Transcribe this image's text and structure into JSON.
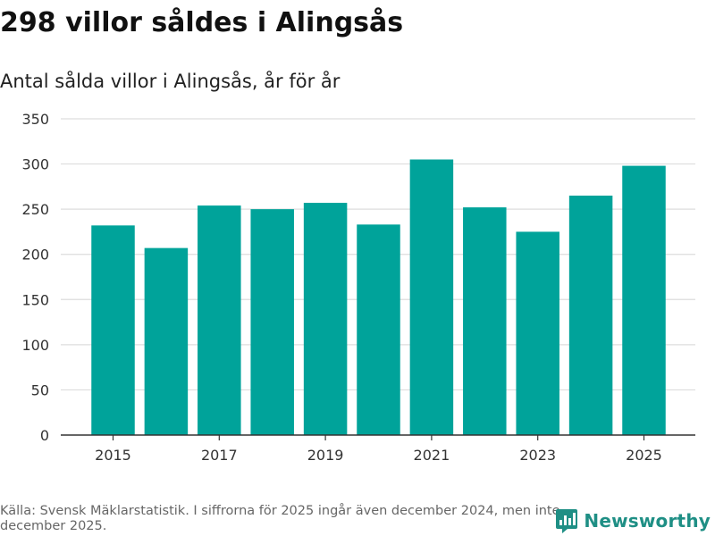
{
  "header": {
    "title": "298 villor såldes i Alingsås",
    "subtitle": "Antal sålda villor i Alingsås, år för år"
  },
  "footer": {
    "source": "Källa: Svensk Mäklarstatistik. I siffrorna för 2025 ingår även december 2024, men inte december 2025.",
    "brand": "Newsworthy",
    "brand_icon": "bar-chart-logo-icon"
  },
  "colors": {
    "bar": "#00a39a",
    "grid": "#dddddd",
    "axis": "#333333",
    "brand": "#1f8f85"
  },
  "chart_data": {
    "type": "bar",
    "title": "298 villor såldes i Alingsås",
    "subtitle": "Antal sålda villor i Alingsås, år för år",
    "categories": [
      "2015",
      "2016",
      "2017",
      "2018",
      "2019",
      "2020",
      "2021",
      "2022",
      "2023",
      "2024",
      "2025"
    ],
    "values": [
      232,
      207,
      254,
      250,
      257,
      233,
      305,
      252,
      225,
      265,
      298
    ],
    "xtick_labels": [
      "2015",
      "2017",
      "2019",
      "2021",
      "2023",
      "2025"
    ],
    "yticks": [
      0,
      50,
      100,
      150,
      200,
      250,
      300,
      350
    ],
    "ylim": [
      0,
      350
    ],
    "xlabel": "",
    "ylabel": "",
    "grid": true
  }
}
